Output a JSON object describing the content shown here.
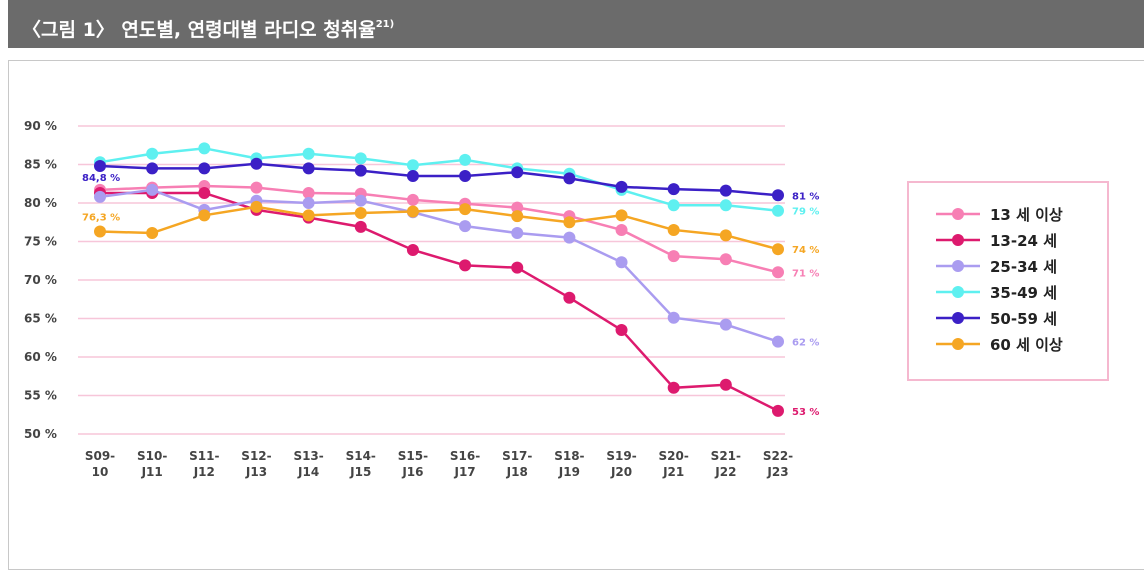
{
  "chart_data": {
    "type": "line",
    "title": "〈그림 1〉 연도별, 연령대별 라디오 청취율",
    "footnote": "21)",
    "categories": [
      [
        "S09-",
        "10"
      ],
      [
        "S10-",
        "J11"
      ],
      [
        "S11-",
        "J12"
      ],
      [
        "S12-",
        "J13"
      ],
      [
        "S13-",
        "J14"
      ],
      [
        "S14-",
        "J15"
      ],
      [
        "S15-",
        "J16"
      ],
      [
        "S16-",
        "J17"
      ],
      [
        "S17-",
        "J18"
      ],
      [
        "S18-",
        "J19"
      ],
      [
        "S19-",
        "J20"
      ],
      [
        "S20-",
        "J21"
      ],
      [
        "S21-",
        "J22"
      ],
      [
        "S22-",
        "J23"
      ]
    ],
    "ylim": [
      50,
      90
    ],
    "yticks": [
      {
        "value": 50,
        "label": "50 %"
      },
      {
        "value": 55,
        "label": "55 %"
      },
      {
        "value": 60,
        "label": "60 %"
      },
      {
        "value": 65,
        "label": "65 %"
      },
      {
        "value": 70,
        "label": "70 %"
      },
      {
        "value": 75,
        "label": "75 %"
      },
      {
        "value": 80,
        "label": "80 %"
      },
      {
        "value": 85,
        "label": "85 %"
      },
      {
        "value": 90,
        "label": "90 %"
      }
    ],
    "grid": true,
    "legend": "right",
    "series": [
      {
        "name": "13 세 이상",
        "color": "#f77fb4",
        "values": [
          81.7,
          82,
          82.2,
          82,
          81.3,
          81.2,
          80.4,
          79.9,
          79.4,
          78.3,
          76.5,
          73.1,
          72.7,
          71
        ],
        "value_labels": [
          null,
          null,
          null,
          null,
          null,
          null,
          null,
          null,
          null,
          null,
          null,
          null,
          null,
          "71 %"
        ]
      },
      {
        "name": "13-24 세",
        "color": "#dd1a6e",
        "values": [
          81.3,
          81.3,
          81.3,
          79.1,
          78.1,
          76.9,
          73.9,
          71.9,
          71.6,
          67.7,
          63.5,
          56,
          56.4,
          53
        ],
        "value_labels": [
          null,
          null,
          null,
          null,
          null,
          null,
          null,
          null,
          null,
          null,
          null,
          null,
          null,
          "53 %"
        ]
      },
      {
        "name": "25-34 세",
        "color": "#aa9cf0",
        "values": [
          80.8,
          81.7,
          79.1,
          80.3,
          80,
          80.3,
          78.8,
          77,
          76.1,
          75.5,
          72.3,
          65.1,
          64.2,
          62
        ],
        "value_labels": [
          null,
          null,
          null,
          null,
          null,
          null,
          null,
          null,
          null,
          null,
          null,
          null,
          null,
          "62 %"
        ]
      },
      {
        "name": "35-49 세",
        "color": "#5ef0f0",
        "values": [
          85.3,
          86.4,
          87.1,
          85.8,
          86.4,
          85.8,
          84.9,
          85.6,
          84.5,
          83.8,
          81.7,
          79.7,
          79.7,
          79
        ],
        "value_labels": [
          null,
          null,
          null,
          null,
          null,
          null,
          null,
          null,
          null,
          null,
          null,
          null,
          null,
          "79 %"
        ]
      },
      {
        "name": "50-59 세",
        "color": "#3b20c6",
        "values": [
          84.8,
          84.5,
          84.5,
          85.1,
          84.5,
          84.2,
          83.5,
          83.5,
          84,
          83.2,
          82.1,
          81.8,
          81.6,
          81
        ],
        "value_labels": [
          "84,8 %",
          null,
          null,
          null,
          null,
          null,
          null,
          null,
          null,
          null,
          null,
          null,
          null,
          "81 %"
        ]
      },
      {
        "name": "60 세 이상",
        "color": "#f5a623",
        "values": [
          76.3,
          76.1,
          78.4,
          79.5,
          78.4,
          78.7,
          78.9,
          79.2,
          78.3,
          77.5,
          78.4,
          76.5,
          75.8,
          74
        ],
        "value_labels": [
          "76,3 %",
          null,
          null,
          null,
          null,
          null,
          null,
          null,
          null,
          null,
          null,
          null,
          null,
          "74 %"
        ]
      }
    ]
  }
}
